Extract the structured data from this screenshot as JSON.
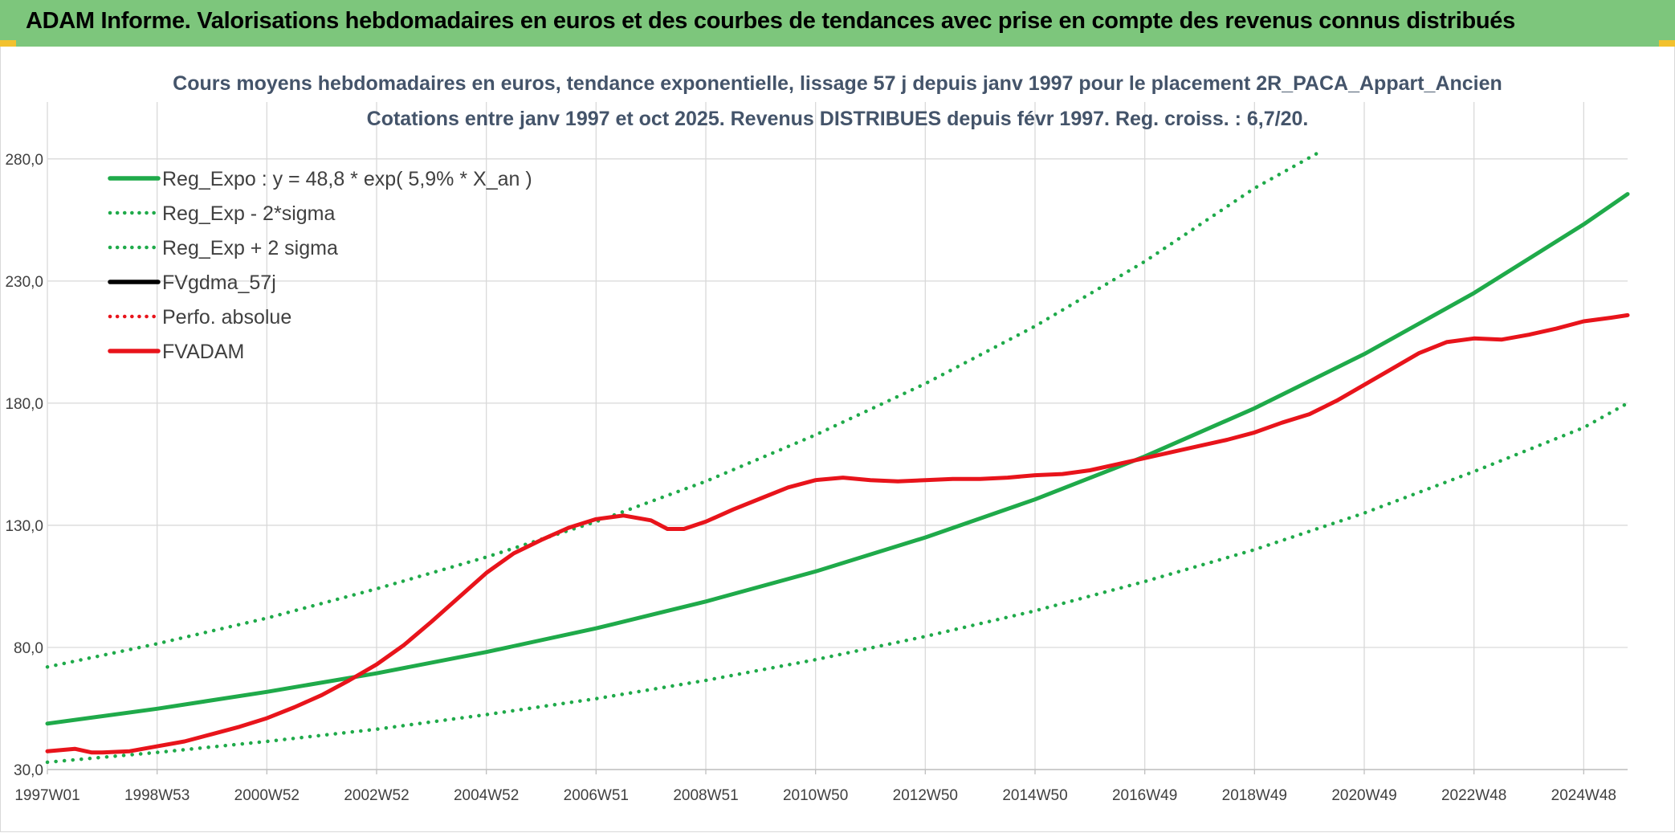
{
  "header": {
    "title": "ADAM Informe. Valorisations hebdomadaires en euros et des courbes de tendances avec prise en compte des revenus connus distribués"
  },
  "colors": {
    "banner": "#7dc67c",
    "accent": "#f2c12e",
    "reg_green": "#1faa4a",
    "fvadam_red": "#e8141b"
  },
  "chart_data": {
    "type": "line",
    "title": "Cours moyens hebdomadaires en euros, tendance exponentielle, lissage 57 j depuis janv 1997 pour le placement 2R_PACA_Appart_Ancien",
    "subtitle": "Cotations entre janv 1997 et oct 2025. Revenus DISTRIBUES depuis févr 1997. Reg. croiss. : 6,7/20.",
    "xlabel": "",
    "ylabel": "",
    "ylim": [
      30,
      300
    ],
    "yticks": [
      "30,0",
      "80,0",
      "130,0",
      "180,0",
      "230,0",
      "280,0"
    ],
    "ytick_values": [
      30,
      80,
      130,
      180,
      230,
      280
    ],
    "xlim": [
      1997.0,
      2025.8
    ],
    "xticks": [
      {
        "label": "1997W01",
        "year": 1997.0
      },
      {
        "label": "1998W53",
        "year": 1999.0
      },
      {
        "label": "2000W52",
        "year": 2001.0
      },
      {
        "label": "2002W52",
        "year": 2003.0
      },
      {
        "label": "2004W52",
        "year": 2005.0
      },
      {
        "label": "2006W51",
        "year": 2007.0
      },
      {
        "label": "2008W51",
        "year": 2009.0
      },
      {
        "label": "2010W50",
        "year": 2011.0
      },
      {
        "label": "2012W50",
        "year": 2013.0
      },
      {
        "label": "2014W50",
        "year": 2015.0
      },
      {
        "label": "2016W49",
        "year": 2017.0
      },
      {
        "label": "2018W49",
        "year": 2019.0
      },
      {
        "label": "2020W49",
        "year": 2021.0
      },
      {
        "label": "2022W48",
        "year": 2023.0
      },
      {
        "label": "2024W48",
        "year": 2025.0
      }
    ],
    "grid": true,
    "legend_position": "top-left",
    "series": [
      {
        "name": "Reg_Expo : y = 48,8 * exp( 5,9% *  X_an )",
        "style": "solid",
        "color": "#1faa4a",
        "x": [
          1997,
          1999,
          2001,
          2003,
          2005,
          2007,
          2009,
          2011,
          2013,
          2015,
          2017,
          2019,
          2021,
          2023,
          2025,
          2025.8
        ],
        "y": [
          48.8,
          54.9,
          61.8,
          69.4,
          78.1,
          87.8,
          98.8,
          111.1,
          125.0,
          140.6,
          158.2,
          177.9,
          200.1,
          225.1,
          253.2,
          265.6
        ]
      },
      {
        "name": "Reg_Exp - 2*sigma",
        "style": "dotted",
        "color": "#1faa4a",
        "x": [
          1997,
          1999,
          2001,
          2003,
          2005,
          2007,
          2009,
          2011,
          2013,
          2015,
          2017,
          2019,
          2021,
          2023,
          2025,
          2025.8
        ],
        "y": [
          33,
          37,
          41.5,
          46.5,
          52.5,
          59,
          66.5,
          75,
          84.5,
          95,
          107,
          120,
          135,
          152,
          170,
          180
        ]
      },
      {
        "name": "Reg_Exp + 2 sigma",
        "style": "dotted",
        "color": "#1faa4a",
        "x": [
          1997,
          1999,
          2001,
          2003,
          2005,
          2007,
          2009,
          2011,
          2013,
          2015,
          2017,
          2019,
          2020.2
        ],
        "y": [
          72,
          81.5,
          92,
          104,
          117,
          131.5,
          148,
          167,
          188,
          211.5,
          238,
          268,
          283
        ]
      },
      {
        "name": "FVgdma_57j",
        "style": "solid",
        "color": "#000000",
        "x": [],
        "y": []
      },
      {
        "name": "Perfo. absolue",
        "style": "dotted",
        "color": "#e8141b",
        "x": [],
        "y": []
      },
      {
        "name": "FVADAM",
        "style": "solid",
        "color": "#e8141b",
        "x": [
          1997,
          1997.5,
          1997.8,
          1998.0,
          1998.5,
          1999.0,
          1999.5,
          2000.0,
          2000.5,
          2001.0,
          2001.5,
          2002.0,
          2002.5,
          2003.0,
          2003.5,
          2004.0,
          2004.5,
          2005.0,
          2005.5,
          2006.0,
          2006.5,
          2007.0,
          2007.5,
          2008.0,
          2008.3,
          2008.6,
          2009.0,
          2009.5,
          2010.0,
          2010.5,
          2011.0,
          2011.5,
          2012.0,
          2012.5,
          2013.0,
          2013.5,
          2014.0,
          2014.5,
          2015.0,
          2015.5,
          2016.0,
          2016.5,
          2017.0,
          2017.5,
          2018.0,
          2018.5,
          2019.0,
          2019.5,
          2020.0,
          2020.5,
          2021.0,
          2021.5,
          2022.0,
          2022.5,
          2023.0,
          2023.5,
          2024.0,
          2024.5,
          2025.0,
          2025.5,
          2025.8
        ],
        "y": [
          37.5,
          38.5,
          37.0,
          37.0,
          37.5,
          39.5,
          41.5,
          44.5,
          47.5,
          51.0,
          55.5,
          60.5,
          66.5,
          73.0,
          81.0,
          90.5,
          100.5,
          110.5,
          118.5,
          124.0,
          129.0,
          132.5,
          134.0,
          132.0,
          128.5,
          128.5,
          131.5,
          136.5,
          141.0,
          145.5,
          148.5,
          149.5,
          148.5,
          148.0,
          148.5,
          149.0,
          149.0,
          149.5,
          150.5,
          151.0,
          152.5,
          155.0,
          157.5,
          160.0,
          162.5,
          165.0,
          168.0,
          172.0,
          175.5,
          181.0,
          187.5,
          194.0,
          200.5,
          205.0,
          206.5,
          206.0,
          208.0,
          210.5,
          213.5,
          215.0,
          216.0
        ]
      }
    ]
  }
}
